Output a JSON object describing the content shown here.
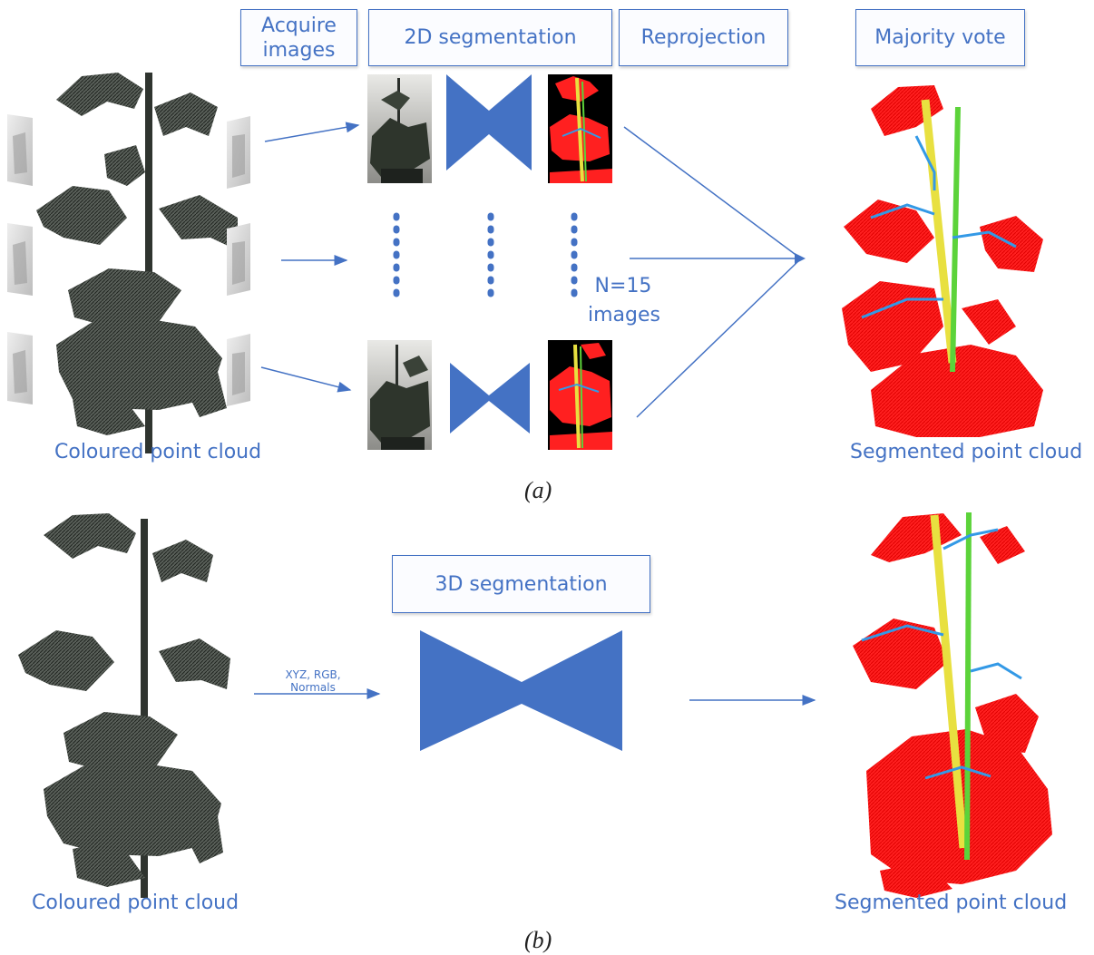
{
  "panel_a": {
    "steps": {
      "acquire_images": "Acquire images",
      "segmentation_2d": "2D segmentation",
      "reprojection": "Reprojection",
      "majority_vote": "Majority vote"
    },
    "image_count": "N=15 images",
    "input_label": "Coloured point cloud",
    "output_label": "Segmented point cloud",
    "caption": "(a)"
  },
  "panel_b": {
    "step": "3D segmentation",
    "input_features": "XYZ, RGB, Normals",
    "input_label": "Coloured point cloud",
    "output_label": "Segmented point cloud",
    "caption": "(b)"
  },
  "colors": {
    "accent": "#4472c4",
    "leaf": "#ff2020",
    "stem_main": "#e8e040",
    "stem_support": "#5cd33a",
    "petiole": "#3399e6",
    "cloud": "#3a3f3a"
  }
}
